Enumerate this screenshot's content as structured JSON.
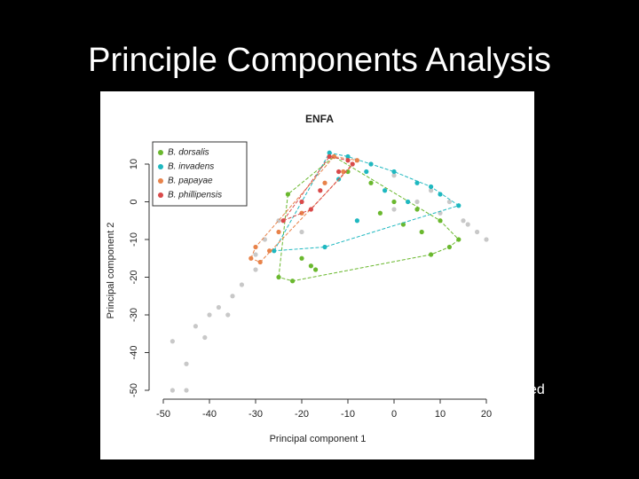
{
  "slide_title": "Principle Components Analysis",
  "caption_fragment": "ed",
  "chart_data": {
    "type": "scatter",
    "title": "ENFA",
    "x_label": "Principal component 1",
    "y_label": "Principal component 2",
    "xlim": [
      -53,
      23
    ],
    "xticks": [
      -50,
      -40,
      -30,
      -20,
      -10,
      0,
      10,
      20
    ],
    "ylim": [
      -52,
      13
    ],
    "yticks": [
      10,
      0,
      -10,
      -20,
      -30,
      -40,
      -50
    ],
    "legend": "top-left",
    "series": [
      {
        "color": "#c8c8c8",
        "x": [
          -48,
          -45,
          -43,
          -40,
          -38,
          -35,
          -33,
          -30,
          -28,
          -25,
          -45,
          -48,
          -20,
          0,
          5,
          10,
          15,
          18,
          20,
          -5,
          0,
          -30,
          -36,
          -41,
          8,
          12,
          16
        ],
        "y": [
          -37,
          -43,
          -33,
          -30,
          -28,
          -25,
          -22,
          -18,
          -10,
          -5,
          -50,
          -50,
          -8,
          -2,
          0,
          -3,
          -5,
          -8,
          -10,
          10,
          7,
          -14,
          -30,
          -36,
          3,
          0,
          -6
        ]
      },
      {
        "name": "B. dorsalis",
        "color": "#6ab82e",
        "x": [
          -23,
          -13,
          -10,
          -5,
          0,
          5,
          10,
          14,
          12,
          8,
          -22,
          -25,
          -18,
          -17,
          -20,
          2,
          6,
          -3
        ],
        "y": [
          2,
          12,
          8,
          5,
          0,
          -2,
          -5,
          -10,
          -12,
          -14,
          -21,
          -20,
          -17,
          -18,
          -15,
          -6,
          -8,
          -3
        ]
      },
      {
        "name": "B. invadens",
        "color": "#1fb8c0",
        "x": [
          -14,
          -10,
          -5,
          0,
          5,
          10,
          14,
          -26,
          -15,
          -8,
          -2,
          3,
          -12,
          -6,
          8
        ],
        "y": [
          13,
          12,
          10,
          8,
          5,
          2,
          -1,
          -13,
          -12,
          -5,
          3,
          0,
          6,
          8,
          4
        ]
      },
      {
        "name": "B. papayae",
        "color": "#e8834a",
        "x": [
          -13,
          -8,
          -30,
          -29,
          -31,
          -25,
          -20,
          -15,
          -11,
          -27
        ],
        "y": [
          12,
          11,
          -12,
          -16,
          -15,
          -8,
          -3,
          5,
          8,
          -13
        ]
      },
      {
        "name": "B. phillipensis",
        "color": "#d94a4a",
        "x": [
          -14,
          -10,
          -18,
          -24,
          -16,
          -12,
          -9,
          -20
        ],
        "y": [
          12,
          11,
          -2,
          -5,
          3,
          8,
          10,
          0
        ]
      }
    ]
  }
}
